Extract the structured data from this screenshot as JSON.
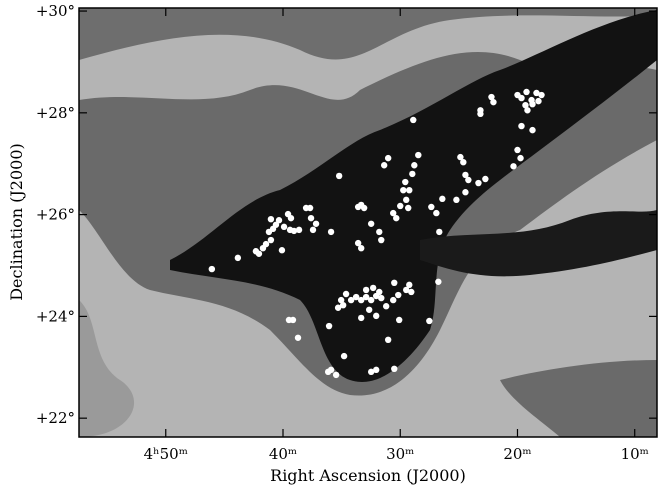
{
  "chart_data": {
    "type": "scatter",
    "xlabel": "Right Ascension (J2000)",
    "ylabel": "Declination (J2000)",
    "xlim": [
      297.4,
      248.1
    ],
    "ylim": [
      21.63,
      30.06
    ],
    "xticks": [
      {
        "value": 290,
        "label": "4ʰ50ᵐ"
      },
      {
        "value": 280,
        "label": "40ᵐ"
      },
      {
        "value": 270,
        "label": "30ᵐ"
      },
      {
        "value": 260,
        "label": "20ᵐ"
      },
      {
        "value": 250,
        "label": "10ᵐ"
      }
    ],
    "yticks": [
      {
        "value": 22,
        "label": "+22°"
      },
      {
        "value": 24,
        "label": "+24°"
      },
      {
        "value": 26,
        "label": "+26°"
      },
      {
        "value": 28,
        "label": "+28°"
      },
      {
        "value": 30,
        "label": "+30°"
      }
    ],
    "color": "#ffffff",
    "x": [
      286.07,
      283.85,
      282.31,
      282.05,
      281.71,
      281.45,
      281.03,
      281.2,
      280.85,
      280.6,
      281.03,
      280.34,
      279.91,
      279.57,
      279.32,
      279.4,
      279.06,
      278.63,
      278.03,
      277.69,
      277.61,
      277.44,
      277.18,
      280.09,
      275.9,
      275.21,
      273.59,
      273.33,
      273.08,
      273.59,
      273.33,
      272.48,
      271.79,
      271.62,
      271.37,
      271.03,
      270.6,
      270.34,
      270.0,
      269.74,
      269.57,
      269.49,
      269.23,
      268.97,
      268.8,
      268.46,
      269.32,
      268.89,
      267.35,
      266.92,
      266.67,
      266.41,
      265.21,
      264.87,
      264.62,
      264.44,
      264.19,
      264.44,
      263.33,
      262.74,
      263.16,
      263.16,
      262.22,
      262.05,
      260.0,
      259.66,
      259.23,
      258.8,
      258.38,
      257.95,
      259.32,
      259.15,
      258.72,
      258.21,
      259.66,
      258.72,
      260.0,
      259.74,
      260.34,
      274.62,
      275.04,
      275.3,
      274.19,
      273.76,
      273.33,
      272.91,
      272.48,
      272.05,
      271.62,
      272.91,
      272.31,
      271.79,
      270.51,
      270.17,
      269.49,
      269.23,
      269.06,
      270.6,
      272.65,
      272.05,
      271.2,
      270.09,
      266.75,
      267.52,
      274.87,
      279.49,
      279.15,
      278.72,
      276.07,
      271.03,
      274.79,
      275.9,
      276.15,
      275.47,
      272.48,
      272.05,
      270.51,
      273.33
    ],
    "values": [
      24.93,
      25.15,
      25.28,
      25.23,
      25.34,
      25.42,
      25.5,
      25.66,
      25.72,
      25.8,
      25.91,
      25.89,
      25.76,
      26.01,
      25.93,
      25.7,
      25.68,
      25.7,
      26.13,
      26.13,
      25.93,
      25.7,
      25.82,
      25.3,
      25.66,
      26.76,
      26.15,
      26.19,
      26.13,
      25.44,
      25.34,
      25.82,
      25.66,
      25.5,
      26.97,
      27.11,
      26.03,
      25.93,
      26.17,
      26.48,
      26.64,
      26.29,
      26.48,
      26.8,
      26.97,
      27.17,
      26.13,
      27.86,
      26.15,
      26.03,
      25.66,
      26.31,
      26.29,
      27.13,
      27.03,
      26.78,
      26.68,
      26.44,
      26.62,
      26.7,
      28.05,
      27.98,
      28.31,
      28.21,
      28.35,
      28.29,
      28.41,
      28.25,
      28.39,
      28.35,
      28.15,
      28.05,
      28.17,
      28.23,
      27.74,
      27.66,
      27.27,
      27.11,
      26.95,
      24.44,
      24.32,
      24.17,
      24.32,
      24.38,
      24.32,
      24.38,
      24.32,
      24.4,
      24.36,
      24.52,
      24.56,
      24.48,
      24.66,
      24.42,
      24.52,
      24.62,
      24.48,
      24.32,
      24.13,
      24.01,
      24.2,
      23.93,
      24.68,
      23.91,
      24.22,
      23.93,
      23.93,
      23.58,
      23.81,
      23.54,
      23.22,
      22.95,
      22.91,
      22.85,
      22.91,
      22.95,
      22.97,
      23.97
    ]
  }
}
